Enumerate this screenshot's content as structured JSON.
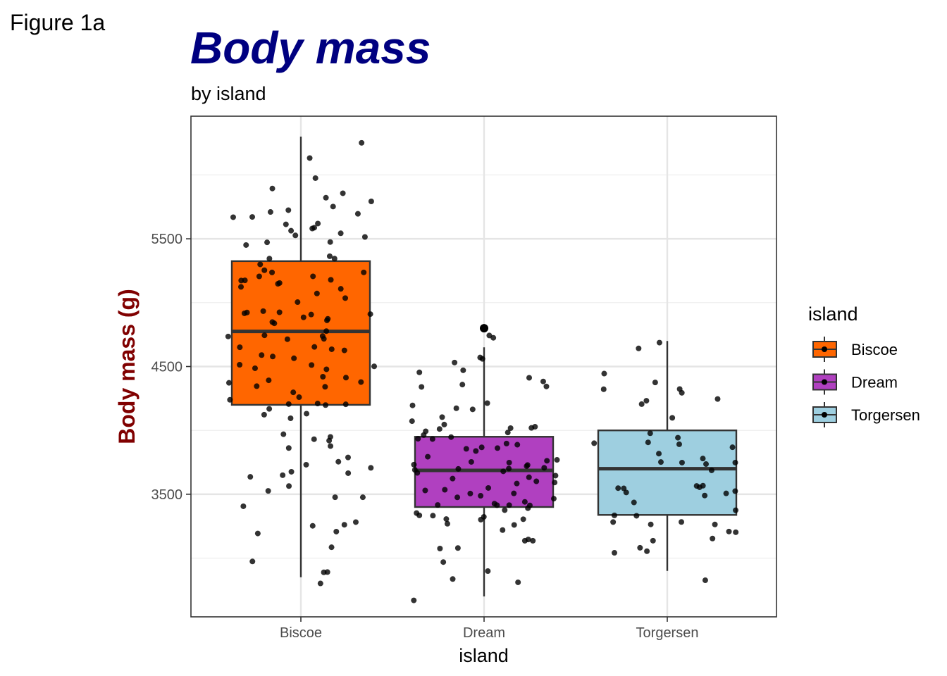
{
  "figure_tag": "Figure 1a",
  "chart_data": {
    "type": "box",
    "title": "Body mass",
    "subtitle": "by island",
    "xlabel": "island",
    "ylabel": "Body mass (g)",
    "categories": [
      "Biscoe",
      "Dream",
      "Torgersen"
    ],
    "yticks": [
      3500,
      4500,
      5500
    ],
    "ylim": [
      2540,
      6460
    ],
    "grid": true,
    "colors": {
      "Biscoe": "#FF6600",
      "Dream": "#B040C0",
      "Torgersen": "#9ECFE0",
      "title": "#000080",
      "ylabel": "#800000"
    },
    "legend": {
      "title": "island",
      "position": "right",
      "entries": [
        "Biscoe",
        "Dream",
        "Torgersen"
      ]
    },
    "boxes": [
      {
        "category": "Biscoe",
        "whisker_low": 2850,
        "q1": 4200,
        "median": 4775,
        "q3": 5325,
        "whisker_high": 6300
      },
      {
        "category": "Dream",
        "whisker_low": 2700,
        "q1": 3400,
        "median": 3687,
        "q3": 3950,
        "whisker_high": 4650
      },
      {
        "category": "Torgersen",
        "whisker_low": 2900,
        "q1": 3338,
        "median": 3700,
        "q3": 4000,
        "whisker_high": 4700
      }
    ],
    "outliers": [
      {
        "category": "Dream",
        "value": 4800
      }
    ],
    "points": {
      "Biscoe": [
        2850,
        2900,
        2925,
        3050,
        3150,
        3175,
        3200,
        3200,
        3250,
        3350,
        3400,
        3450,
        3500,
        3550,
        3550,
        3600,
        3600,
        3650,
        3700,
        3700,
        3750,
        3750,
        3800,
        3800,
        3850,
        3900,
        3900,
        3950,
        3950,
        4000,
        4050,
        4100,
        4125,
        4150,
        4200,
        4200,
        4250,
        4250,
        4300,
        4300,
        4350,
        4350,
        4400,
        4400,
        4400,
        4450,
        4450,
        4500,
        4500,
        4550,
        4550,
        4600,
        4600,
        4625,
        4650,
        4650,
        4700,
        4700,
        4700,
        4725,
        4725,
        4750,
        4750,
        4775,
        4775,
        4800,
        4800,
        4850,
        4850,
        4875,
        4900,
        4900,
        4925,
        4950,
        4950,
        5000,
        5000,
        5000,
        5050,
        5050,
        5100,
        5100,
        5150,
        5150,
        5200,
        5200,
        5200,
        5250,
        5250,
        5300,
        5300,
        5300,
        5350,
        5350,
        5400,
        5400,
        5450,
        5450,
        5500,
        5500,
        5550,
        5550,
        5550,
        5600,
        5600,
        5650,
        5650,
        5700,
        5700,
        5700,
        5750,
        5800,
        5850,
        5850,
        5900,
        5950,
        6000,
        6050,
        6300
      ],
      "Dream": [
        2700,
        2900,
        2900,
        2975,
        3000,
        3050,
        3100,
        3150,
        3175,
        3200,
        3200,
        3250,
        3250,
        3275,
        3300,
        3300,
        3300,
        3325,
        3325,
        3350,
        3350,
        3400,
        3400,
        3400,
        3425,
        3425,
        3450,
        3450,
        3475,
        3500,
        3500,
        3500,
        3525,
        3550,
        3550,
        3575,
        3600,
        3600,
        3600,
        3625,
        3650,
        3650,
        3650,
        3675,
        3675,
        3700,
        3700,
        3700,
        3725,
        3725,
        3750,
        3750,
        3750,
        3775,
        3775,
        3800,
        3800,
        3800,
        3825,
        3850,
        3850,
        3875,
        3900,
        3900,
        3900,
        3950,
        3950,
        3950,
        3975,
        4000,
        4000,
        4050,
        4050,
        4100,
        4100,
        4150,
        4150,
        4150,
        4250,
        4300,
        4300,
        4350,
        4400,
        4400,
        4450,
        4450,
        4500,
        4550,
        4600,
        4650,
        4800
      ],
      "Torgersen": [
        2900,
        3050,
        3050,
        3075,
        3150,
        3200,
        3200,
        3250,
        3275,
        3300,
        3300,
        3325,
        3325,
        3350,
        3350,
        3400,
        3450,
        3450,
        3450,
        3500,
        3500,
        3525,
        3550,
        3600,
        3650,
        3700,
        3700,
        3700,
        3725,
        3750,
        3750,
        3800,
        3800,
        3800,
        3875,
        3900,
        3900,
        4000,
        4000,
        4150,
        4200,
        4200,
        4250,
        4300,
        4400,
        4450,
        4500,
        4675,
        4700
      ]
    }
  }
}
